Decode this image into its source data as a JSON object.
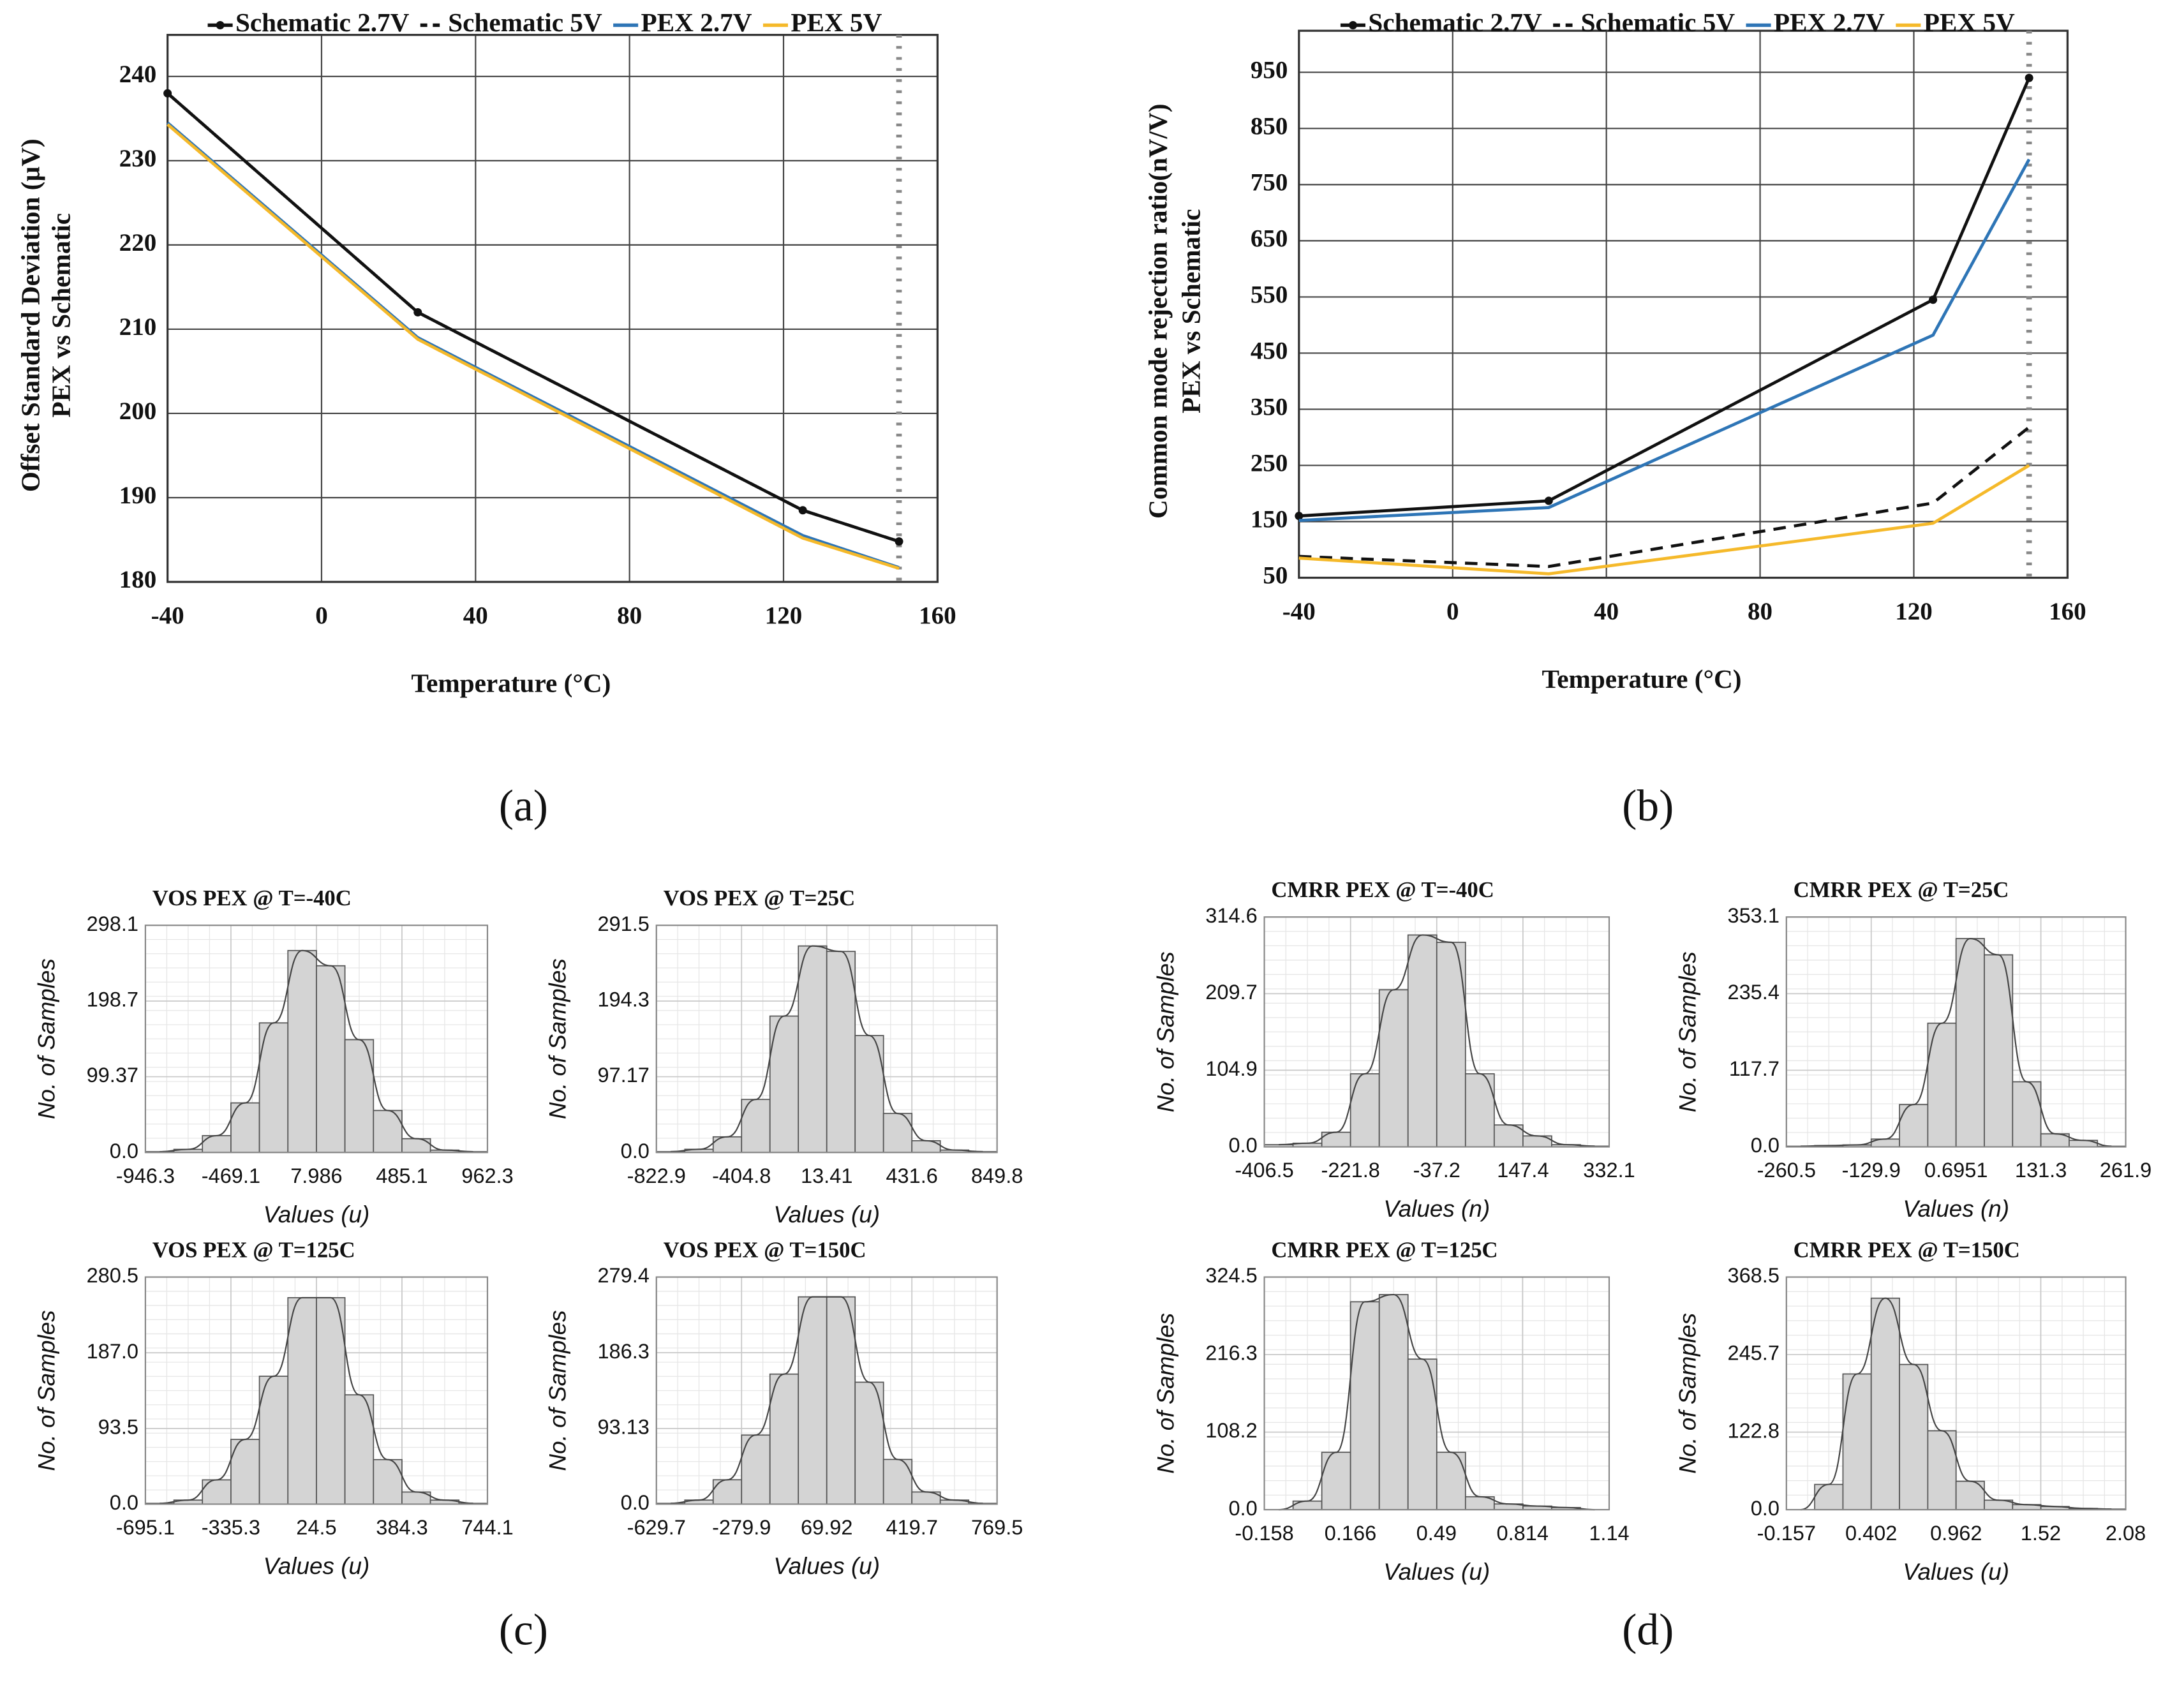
{
  "panels": [
    "(a)",
    "(b)",
    "(c)",
    "(d)"
  ],
  "chart_data": [
    {
      "type": "line",
      "xlabel": "Temperature (°C)",
      "ylabel": [
        "Offset Standard Deviation (µV)",
        "PEX vs Schematic"
      ],
      "x": [
        -40,
        25,
        125,
        150
      ],
      "xlim": [
        -40,
        160
      ],
      "xticks": [
        -40,
        0,
        40,
        80,
        120,
        160
      ],
      "ylim": [
        180,
        240
      ],
      "yticks": [
        180,
        190,
        200,
        210,
        220,
        230,
        240
      ],
      "grid": true,
      "series": [
        {
          "name": "Schematic 2.7V",
          "color": "#111111",
          "marker": true,
          "values": [
            238,
            212,
            188.5,
            184.8
          ]
        },
        {
          "name": "Schematic 5V",
          "color": "#111111",
          "dashed": true,
          "values": [
            238,
            212,
            188.5,
            184.8
          ]
        },
        {
          "name": "PEX 2.7V",
          "color": "#2e75b6",
          "values": [
            234.5,
            209,
            185.5,
            181.7
          ]
        },
        {
          "name": "PEX 5V",
          "color": "#f5b92a",
          "values": [
            234.3,
            208.8,
            185.2,
            181.6
          ]
        }
      ]
    },
    {
      "type": "line",
      "xlabel": "Temperature (°C)",
      "ylabel": [
        "Common mode rejection ratio(nV/V)",
        "PEX vs Schematic"
      ],
      "x": [
        -40,
        25,
        125,
        150
      ],
      "xlim": [
        -40,
        160
      ],
      "xticks": [
        -40,
        0,
        40,
        80,
        120,
        160
      ],
      "ylim": [
        50,
        950
      ],
      "yticks": [
        50,
        150,
        250,
        350,
        450,
        550,
        650,
        750,
        850,
        950
      ],
      "grid": true,
      "series": [
        {
          "name": "Schematic 2.7V",
          "color": "#111111",
          "marker": true,
          "values": [
            160,
            187,
            545,
            940
          ]
        },
        {
          "name": "Schematic 5V",
          "color": "#111111",
          "dashed": true,
          "values": [
            88,
            70,
            183,
            318
          ]
        },
        {
          "name": "PEX 2.7V",
          "color": "#2e75b6",
          "values": [
            152,
            175,
            482,
            795
          ]
        },
        {
          "name": "PEX 5V",
          "color": "#f5b92a",
          "values": [
            85,
            57,
            147,
            250
          ]
        }
      ]
    },
    {
      "type": "histogram",
      "title": "VOS PEX @ T=-40C",
      "xlabel": "Values (u)",
      "ylabel": "No. of Samples",
      "color": "#d4d4d4",
      "bins": [
        -946.3,
        -787.25,
        -628.2,
        -469.15,
        -310.1,
        -151.05,
        8,
        167.05,
        326.1,
        485.15,
        644.2,
        803.25,
        962.3
      ],
      "values": [
        1,
        4,
        22,
        65,
        170,
        265,
        245,
        148,
        55,
        18,
        3,
        1
      ],
      "xlim": [
        -946.3,
        962.3
      ],
      "xticks": [
        -946.3,
        -469.1,
        7.986,
        485.1,
        962.3
      ],
      "ylim": [
        0,
        298.1
      ],
      "yticks": [
        {
          "value": 0,
          "label": "0.0"
        },
        99.37,
        198.7,
        298.1
      ]
    },
    {
      "type": "histogram",
      "title": "VOS PEX @ T=25C",
      "xlabel": "Values (u)",
      "ylabel": "No. of Samples",
      "color": "#d4d4d4",
      "bins": [
        -822.9,
        -683.51,
        -544.12,
        -404.73,
        -265.33,
        -125.94,
        13.45,
        152.84,
        292.23,
        431.63,
        571.02,
        710.41,
        849.8
      ],
      "values": [
        1,
        4,
        20,
        68,
        175,
        265,
        258,
        150,
        50,
        15,
        3,
        1
      ],
      "xlim": [
        -822.9,
        849.8
      ],
      "xticks": [
        -822.9,
        -404.8,
        13.41,
        431.6,
        849.8
      ],
      "ylim": [
        0,
        291.5
      ],
      "yticks": [
        {
          "value": 0,
          "label": "0.0"
        },
        97.17,
        194.3,
        291.5
      ]
    },
    {
      "type": "histogram",
      "title": "VOS PEX @ T=125C",
      "xlabel": "Values (u)",
      "ylabel": "No. of Samples",
      "color": "#d4d4d4",
      "bins": [
        -695.1,
        -575.17,
        -455.23,
        -335.3,
        -215.37,
        -95.43,
        24.5,
        144.43,
        264.37,
        384.3,
        504.23,
        624.17,
        744.1
      ],
      "values": [
        1,
        5,
        30,
        80,
        158,
        255,
        255,
        135,
        55,
        15,
        5,
        1
      ],
      "xlim": [
        -695.1,
        744.1
      ],
      "xticks": [
        -695.1,
        -335.3,
        24.5,
        384.3,
        744.1
      ],
      "ylim": [
        0,
        280.5
      ],
      "yticks": [
        {
          "value": 0,
          "label": "0.0"
        },
        93.5,
        {
          "value": 187,
          "label": "187.0"
        },
        280.5
      ]
    },
    {
      "type": "histogram",
      "title": "VOS PEX @ T=150C",
      "xlabel": "Values (u)",
      "ylabel": "No. of Samples",
      "color": "#d4d4d4",
      "bins": [
        -629.7,
        -513.1,
        -396.5,
        -279.9,
        -163.3,
        -46.7,
        69.9,
        186.5,
        303.1,
        419.7,
        536.3,
        652.9,
        769.5
      ],
      "values": [
        1,
        5,
        30,
        85,
        160,
        255,
        255,
        150,
        55,
        15,
        5,
        1
      ],
      "xlim": [
        -629.7,
        769.5
      ],
      "xticks": [
        -629.7,
        -279.9,
        69.92,
        419.7,
        769.5
      ],
      "ylim": [
        0,
        279.4
      ],
      "yticks": [
        {
          "value": 0,
          "label": "0.0"
        },
        93.13,
        186.3,
        279.4
      ]
    },
    {
      "type": "histogram",
      "title": "CMRR PEX @ T=-40C",
      "xlabel": "Values (n)",
      "ylabel": "No. of Samples",
      "color": "#d4d4d4",
      "bins": [
        -406.5,
        -344.95,
        -283.4,
        -221.85,
        -160.3,
        -98.75,
        -37.2,
        24.35,
        85.9,
        147.45,
        209,
        270.55,
        332.1
      ],
      "values": [
        3,
        5,
        20,
        100,
        215,
        290,
        280,
        100,
        30,
        15,
        3,
        1
      ],
      "xlim": [
        -406.5,
        332.1
      ],
      "xticks": [
        -406.5,
        -221.8,
        -37.2,
        147.4,
        332.1
      ],
      "ylim": [
        0,
        314.6
      ],
      "yticks": [
        {
          "value": 0,
          "label": "0.0"
        },
        104.9,
        209.7,
        314.6
      ]
    },
    {
      "type": "histogram",
      "title": "CMRR PEX @ T=25C",
      "xlabel": "Values (n)",
      "ylabel": "No. of Samples",
      "color": "#d4d4d4",
      "bins": [
        -260.5,
        -216.97,
        -173.43,
        -129.9,
        -86.37,
        -42.83,
        0.7,
        44.23,
        87.77,
        131.3,
        174.83,
        218.37,
        261.9
      ],
      "values": [
        1,
        2,
        3,
        12,
        65,
        190,
        320,
        295,
        100,
        20,
        10,
        1
      ],
      "xlim": [
        -260.5,
        261.9
      ],
      "xticks": [
        -260.5,
        -129.9,
        0.6951,
        131.3,
        261.9
      ],
      "ylim": [
        0,
        353.1
      ],
      "yticks": [
        {
          "value": 0,
          "label": "0.0"
        },
        117.7,
        235.4,
        353.1
      ]
    },
    {
      "type": "histogram",
      "title": "CMRR PEX @ T=125C",
      "xlabel": "Values (u)",
      "ylabel": "No. of Samples",
      "color": "#d4d4d4",
      "bins": [
        -0.158,
        -0.0498,
        0.0583,
        0.1665,
        0.2747,
        0.3828,
        0.491,
        0.5992,
        0.7073,
        0.8155,
        0.9237,
        1.0318,
        1.14
      ],
      "values": [
        0,
        12,
        80,
        290,
        300,
        210,
        80,
        18,
        8,
        5,
        3,
        0
      ],
      "xlim": [
        -0.158,
        1.14
      ],
      "xticks": [
        -0.158,
        0.166,
        0.49,
        0.814,
        1.14
      ],
      "ylim": [
        0,
        324.5
      ],
      "yticks": [
        {
          "value": 0,
          "label": "0.0"
        },
        108.2,
        216.3,
        324.5
      ]
    },
    {
      "type": "histogram",
      "title": "CMRR PEX @ T=150C",
      "xlabel": "Values (u)",
      "ylabel": "No. of Samples",
      "color": "#d4d4d4",
      "bins": [
        -0.157,
        0.0294,
        0.2158,
        0.4022,
        0.5886,
        0.7751,
        0.9615,
        1.1479,
        1.3343,
        1.5207,
        1.7071,
        1.8936,
        2.08
      ],
      "values": [
        0,
        40,
        215,
        335,
        230,
        125,
        45,
        15,
        8,
        5,
        2,
        1
      ],
      "xlim": [
        -0.157,
        2.08
      ],
      "xticks": [
        -0.157,
        0.402,
        0.962,
        1.52,
        2.08
      ],
      "ylim": [
        0,
        368.5
      ],
      "yticks": [
        {
          "value": 0,
          "label": "0.0"
        },
        122.8,
        245.7,
        368.5
      ]
    }
  ]
}
